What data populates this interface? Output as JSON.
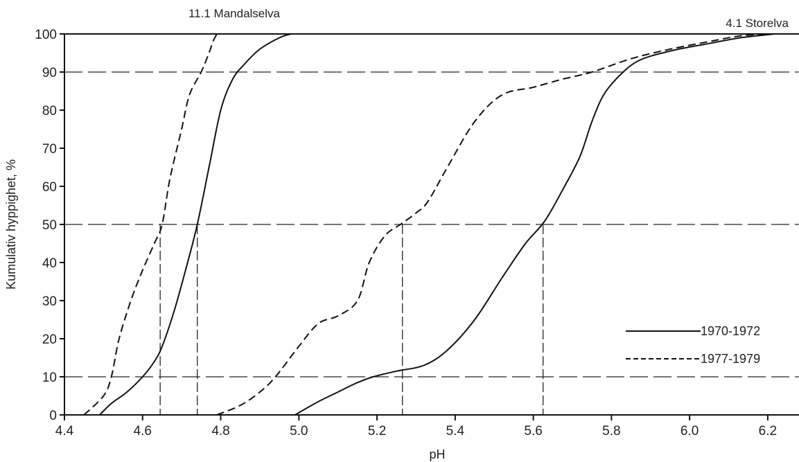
{
  "chart_data": {
    "type": "line",
    "title": "",
    "xlabel": "pH",
    "ylabel": "Kumulativ hyppighet, %",
    "xlim": [
      4.4,
      6.28
    ],
    "ylim": [
      0,
      100
    ],
    "x_ticks": [
      "4.4",
      "4.6",
      "4.8",
      "5.0",
      "5.2",
      "5.4",
      "5.6",
      "5.8",
      "6.0",
      "6.2"
    ],
    "x_tick_values": [
      4.4,
      4.6,
      4.8,
      5.0,
      5.2,
      5.4,
      5.6,
      5.8,
      6.0,
      6.2
    ],
    "y_ticks": [
      "0",
      "10",
      "20",
      "30",
      "40",
      "50",
      "60",
      "70",
      "80",
      "90",
      "100"
    ],
    "y_tick_values": [
      0,
      10,
      20,
      30,
      40,
      50,
      60,
      70,
      80,
      90,
      100
    ],
    "horizontal_reference_lines": [
      10,
      50,
      90
    ],
    "grid": false,
    "legend_position": "bottom-right",
    "legend": [
      {
        "label": "1970-1972",
        "style": "solid"
      },
      {
        "label": "1977-1979",
        "style": "dashed"
      }
    ],
    "station_labels": [
      "11.1 Mandalselva",
      "4.1 Storelva"
    ],
    "series": [
      {
        "station": "11.1 Mandalselva",
        "period": "1970-1972",
        "style": "solid",
        "x": [
          4.49,
          4.52,
          4.56,
          4.6,
          4.63,
          4.65,
          4.68,
          4.71,
          4.74,
          4.77,
          4.8,
          4.83,
          4.86,
          4.9,
          4.95,
          4.98
        ],
        "y": [
          0,
          3,
          6,
          10,
          14,
          18,
          27,
          38,
          50,
          65,
          80,
          88,
          92,
          96,
          99,
          100
        ]
      },
      {
        "station": "11.1 Mandalselva",
        "period": "1977-1979",
        "style": "dashed",
        "x": [
          4.45,
          4.5,
          4.52,
          4.54,
          4.57,
          4.6,
          4.63,
          4.65,
          4.67,
          4.7,
          4.72,
          4.75,
          4.77,
          4.78,
          4.79
        ],
        "y": [
          0,
          5,
          10,
          20,
          30,
          38,
          45,
          50,
          62,
          75,
          84,
          90,
          95,
          98,
          100
        ]
      },
      {
        "station": "4.1 Storelva",
        "period": "1970-1972",
        "style": "solid",
        "x": [
          4.99,
          5.05,
          5.1,
          5.15,
          5.19,
          5.25,
          5.32,
          5.38,
          5.45,
          5.52,
          5.58,
          5.63,
          5.68,
          5.72,
          5.75,
          5.78,
          5.82,
          5.87,
          5.95,
          6.05,
          6.13,
          6.2,
          6.22
        ],
        "y": [
          0,
          3.5,
          6,
          8.5,
          10,
          11.5,
          13,
          17,
          25,
          36,
          45,
          51,
          60,
          68,
          77,
          84,
          89,
          93,
          95.5,
          97.5,
          99,
          99.8,
          100
        ]
      },
      {
        "station": "4.1 Storelva",
        "period": "1977-1979",
        "style": "dashed",
        "x": [
          4.79,
          4.85,
          4.9,
          4.94,
          5.0,
          5.05,
          5.1,
          5.15,
          5.18,
          5.22,
          5.26,
          5.3,
          5.33,
          5.38,
          5.45,
          5.52,
          5.6,
          5.67,
          5.75,
          5.85,
          5.95,
          6.05,
          6.13,
          6.2
        ],
        "y": [
          0,
          2.5,
          6,
          10,
          18,
          24,
          26,
          30,
          40,
          47,
          50,
          53,
          56,
          65,
          77,
          84,
          86,
          88,
          90,
          93.5,
          96,
          98,
          99.5,
          100
        ]
      }
    ],
    "markers": [
      {
        "station": "11.1 Mandalselva",
        "period": "1977-1979",
        "x": 4.645,
        "y": 50
      },
      {
        "station": "11.1 Mandalselva",
        "period": "1970-1972",
        "x": 4.74,
        "y": 50
      },
      {
        "station": "4.1 Storelva",
        "period": "1977-1979",
        "x": 5.265,
        "y": 50
      },
      {
        "station": "4.1 Storelva",
        "period": "1970-1972",
        "x": 5.625,
        "y": 50
      }
    ]
  }
}
